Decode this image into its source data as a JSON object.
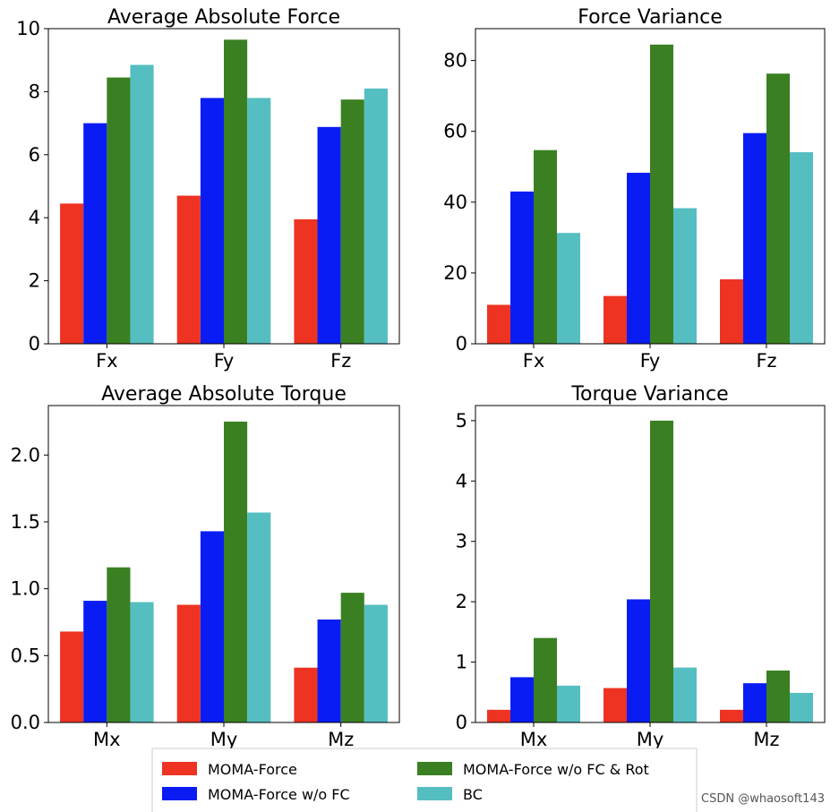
{
  "colors": {
    "MOMA-Force": "#ee3322",
    "MOMA-Force w/o FC": "#0a1cf4",
    "MOMA-Force w/o FC & Rot": "#3a8022",
    "BC": "#55bec1"
  },
  "legend": {
    "items": [
      "MOMA-Force",
      "MOMA-Force w/o FC",
      "MOMA-Force w/o FC & Rot",
      "BC"
    ]
  },
  "watermark": "CSDN @whaosoft143",
  "chart_data": [
    {
      "type": "bar",
      "title": "Average Absolute Force",
      "categories": [
        "Fx",
        "Fy",
        "Fz"
      ],
      "ylim": [
        0,
        10
      ],
      "yticks": [
        0,
        2,
        4,
        6,
        8,
        10
      ],
      "ytick_labels": [
        "0",
        "2",
        "4",
        "6",
        "8",
        "10"
      ],
      "series": [
        {
          "name": "MOMA-Force",
          "values": [
            4.45,
            4.7,
            3.95
          ]
        },
        {
          "name": "MOMA-Force w/o FC",
          "values": [
            7.0,
            7.8,
            6.88
          ]
        },
        {
          "name": "MOMA-Force w/o FC & Rot",
          "values": [
            8.45,
            9.65,
            7.75
          ]
        },
        {
          "name": "BC",
          "values": [
            8.85,
            7.8,
            8.1
          ]
        }
      ]
    },
    {
      "type": "bar",
      "title": "Force Variance",
      "categories": [
        "Fx",
        "Fy",
        "Fz"
      ],
      "ylim": [
        0,
        89
      ],
      "yticks": [
        0,
        20,
        40,
        60,
        80
      ],
      "ytick_labels": [
        "0",
        "20",
        "40",
        "60",
        "80"
      ],
      "series": [
        {
          "name": "MOMA-Force",
          "values": [
            11.0,
            13.5,
            18.2
          ]
        },
        {
          "name": "MOMA-Force w/o FC",
          "values": [
            43.0,
            48.3,
            59.5
          ]
        },
        {
          "name": "MOMA-Force w/o FC & Rot",
          "values": [
            54.7,
            84.5,
            76.3
          ]
        },
        {
          "name": "BC",
          "values": [
            31.3,
            38.3,
            54.1
          ]
        }
      ]
    },
    {
      "type": "bar",
      "title": "Average Absolute Torque",
      "categories": [
        "Mx",
        "My",
        "Mz"
      ],
      "ylim": [
        0,
        2.37
      ],
      "yticks": [
        0,
        0.5,
        1.0,
        1.5,
        2.0
      ],
      "ytick_labels": [
        "0.0",
        "0.5",
        "1.0",
        "1.5",
        "2.0"
      ],
      "series": [
        {
          "name": "MOMA-Force",
          "values": [
            0.68,
            0.88,
            0.41
          ]
        },
        {
          "name": "MOMA-Force w/o FC",
          "values": [
            0.91,
            1.43,
            0.77
          ]
        },
        {
          "name": "MOMA-Force w/o FC & Rot",
          "values": [
            1.16,
            2.25,
            0.97
          ]
        },
        {
          "name": "BC",
          "values": [
            0.9,
            1.57,
            0.88
          ]
        }
      ]
    },
    {
      "type": "bar",
      "title": "Torque Variance",
      "categories": [
        "Mx",
        "My",
        "Mz"
      ],
      "ylim": [
        0,
        5.25
      ],
      "yticks": [
        0,
        1,
        2,
        3,
        4,
        5
      ],
      "ytick_labels": [
        "0",
        "1",
        "2",
        "3",
        "4",
        "5"
      ],
      "series": [
        {
          "name": "MOMA-Force",
          "values": [
            0.21,
            0.57,
            0.21
          ]
        },
        {
          "name": "MOMA-Force w/o FC",
          "values": [
            0.75,
            2.04,
            0.65
          ]
        },
        {
          "name": "MOMA-Force w/o FC & Rot",
          "values": [
            1.4,
            5.0,
            0.86
          ]
        },
        {
          "name": "BC",
          "values": [
            0.61,
            0.91,
            0.49
          ]
        }
      ]
    }
  ]
}
